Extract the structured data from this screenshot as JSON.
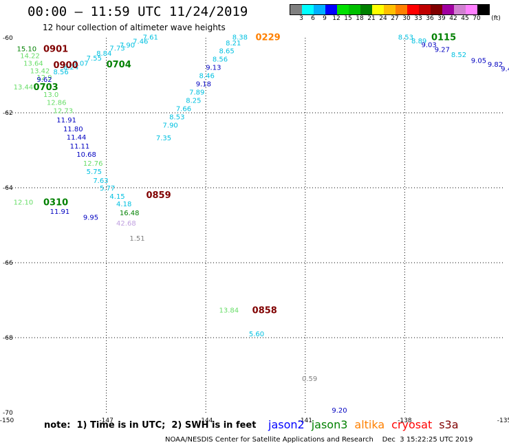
{
  "header": {
    "title": "00:00 – 11:59 UTC 11/24/2019",
    "subtitle": "12 hour collection of altimeter wave heights"
  },
  "color_scale": {
    "colors": [
      "#808080",
      "#00ffff",
      "#00b0ff",
      "#0000ff",
      "#00e000",
      "#00c000",
      "#008000",
      "#ffff00",
      "#ffc000",
      "#ff8000",
      "#ff0000",
      "#c00000",
      "#800000",
      "#a000a0",
      "#d080d0",
      "#ff80ff",
      "#000000"
    ],
    "labels": [
      "3",
      "6",
      "9",
      "12",
      "15",
      "18",
      "21",
      "24",
      "27",
      "30",
      "33",
      "36",
      "39",
      "42",
      "45",
      "70"
    ],
    "unit": "(ft)"
  },
  "chart_data": {
    "type": "scatter",
    "x_axis": {
      "ticks": [
        "-150",
        "-147",
        "-144",
        "-141",
        "-138",
        "-135"
      ],
      "range": [
        -150,
        -135
      ]
    },
    "y_axis": {
      "ticks": [
        "-60",
        "-62",
        "-64",
        "-66",
        "-68",
        "-70"
      ],
      "range": [
        -70,
        -60
      ]
    },
    "grid": true,
    "points": [
      {
        "x": -149.7,
        "y": -60.28,
        "label": "15.10",
        "color": "#008000"
      },
      {
        "x": -149.6,
        "y": -60.47,
        "label": "14.22",
        "color": "#66dd66"
      },
      {
        "x": -149.5,
        "y": -60.67,
        "label": "13.64",
        "color": "#66dd66"
      },
      {
        "x": -149.3,
        "y": -60.87,
        "label": "13.42",
        "color": "#66dd66"
      },
      {
        "x": -149.1,
        "y": -61.05,
        "label": "12.9",
        "color": "#66dd66"
      },
      {
        "x": -149.8,
        "y": -61.3,
        "label": "13.44",
        "color": "#66dd66"
      },
      {
        "x": -148.9,
        "y": -61.5,
        "label": "13.0",
        "color": "#66dd66"
      },
      {
        "x": -148.8,
        "y": -61.72,
        "label": "12.86",
        "color": "#66dd66"
      },
      {
        "x": -148.6,
        "y": -61.94,
        "label": "12.73",
        "color": "#66dd66"
      },
      {
        "x": -148.5,
        "y": -62.18,
        "label": "11.91",
        "color": "#0000c0"
      },
      {
        "x": -148.3,
        "y": -62.42,
        "label": "11.80",
        "color": "#0000c0"
      },
      {
        "x": -148.2,
        "y": -62.64,
        "label": "11.44",
        "color": "#0000c0"
      },
      {
        "x": -148.1,
        "y": -62.88,
        "label": "11.11",
        "color": "#0000c0"
      },
      {
        "x": -147.9,
        "y": -63.1,
        "label": "10.68",
        "color": "#0000c0"
      },
      {
        "x": -147.7,
        "y": -63.34,
        "label": "12.76",
        "color": "#66dd66"
      },
      {
        "x": -147.6,
        "y": -63.56,
        "label": "5.75",
        "color": "#00c0e0"
      },
      {
        "x": -147.4,
        "y": -63.8,
        "label": "7.63",
        "color": "#00c0e0"
      },
      {
        "x": -147.2,
        "y": -64.0,
        "label": "5.77",
        "color": "#00c0e0"
      },
      {
        "x": -146.9,
        "y": -64.22,
        "label": "4.15",
        "color": "#00c0e0"
      },
      {
        "x": -146.7,
        "y": -64.42,
        "label": "4.18",
        "color": "#00c0e0"
      },
      {
        "x": -146.6,
        "y": -64.66,
        "label": "16.48",
        "color": "#008000"
      },
      {
        "x": -146.7,
        "y": -64.94,
        "label": "42.68",
        "color": "#c0a0e0"
      },
      {
        "x": -146.3,
        "y": -65.34,
        "label": "1.51",
        "color": "#808080"
      },
      {
        "x": -149.8,
        "y": -64.38,
        "label": "12.10",
        "color": "#66dd66"
      },
      {
        "x": -148.7,
        "y": -64.62,
        "label": "11.91",
        "color": "#0000c0"
      },
      {
        "x": -147.7,
        "y": -64.78,
        "label": "9.95",
        "color": "#0000c0"
      },
      {
        "x": -149.1,
        "y": -61.1,
        "label": "9.62",
        "color": "#0000c0"
      },
      {
        "x": -148.6,
        "y": -60.9,
        "label": "8.56",
        "color": "#00c0e0"
      },
      {
        "x": -148.3,
        "y": -60.77,
        "label": "8.24",
        "color": "#00c0e0"
      },
      {
        "x": -148.0,
        "y": -60.67,
        "label": "7.07",
        "color": "#00c0e0"
      },
      {
        "x": -147.6,
        "y": -60.53,
        "label": "7.55",
        "color": "#00c0e0"
      },
      {
        "x": -147.3,
        "y": -60.4,
        "label": "8.84",
        "color": "#00c0e0"
      },
      {
        "x": -146.9,
        "y": -60.27,
        "label": "7.73",
        "color": "#00c0e0"
      },
      {
        "x": -146.6,
        "y": -60.18,
        "label": "7.90",
        "color": "#00c0e0"
      },
      {
        "x": -146.2,
        "y": -60.08,
        "label": "7.46",
        "color": "#00c0e0"
      },
      {
        "x": -145.9,
        "y": -59.97,
        "label": "7.61",
        "color": "#00c0e0"
      },
      {
        "x": -143.2,
        "y": -59.97,
        "label": "8.38",
        "color": "#00c0e0"
      },
      {
        "x": -143.4,
        "y": -60.13,
        "label": "8.21",
        "color": "#00c0e0"
      },
      {
        "x": -143.6,
        "y": -60.34,
        "label": "8.65",
        "color": "#00c0e0"
      },
      {
        "x": -143.8,
        "y": -60.56,
        "label": "8.56",
        "color": "#00c0e0"
      },
      {
        "x": -144.0,
        "y": -60.78,
        "label": "9.13",
        "color": "#0000c0"
      },
      {
        "x": -144.2,
        "y": -61.0,
        "label": "8.46",
        "color": "#00c0e0"
      },
      {
        "x": -144.3,
        "y": -61.22,
        "label": "9.18",
        "color": "#0000c0"
      },
      {
        "x": -144.5,
        "y": -61.44,
        "label": "7.89",
        "color": "#00c0e0"
      },
      {
        "x": -144.6,
        "y": -61.66,
        "label": "8.25",
        "color": "#00c0e0"
      },
      {
        "x": -144.9,
        "y": -61.88,
        "label": "7.66",
        "color": "#00c0e0"
      },
      {
        "x": -145.1,
        "y": -62.1,
        "label": "8.53",
        "color": "#00c0e0"
      },
      {
        "x": -145.3,
        "y": -62.32,
        "label": "7.90",
        "color": "#00c0e0"
      },
      {
        "x": -145.5,
        "y": -62.66,
        "label": "7.35",
        "color": "#00c0e0"
      },
      {
        "x": -138.2,
        "y": -59.97,
        "label": "8.53",
        "color": "#00c0e0"
      },
      {
        "x": -137.8,
        "y": -60.07,
        "label": "8.89",
        "color": "#00c0e0"
      },
      {
        "x": -137.5,
        "y": -60.17,
        "label": "9.03",
        "color": "#0000c0"
      },
      {
        "x": -137.1,
        "y": -60.3,
        "label": "9.27",
        "color": "#0000c0"
      },
      {
        "x": -136.6,
        "y": -60.44,
        "label": "8.52",
        "color": "#00c0e0"
      },
      {
        "x": -136.0,
        "y": -60.6,
        "label": "9.05",
        "color": "#0000c0"
      },
      {
        "x": -135.5,
        "y": -60.7,
        "label": "9.82",
        "color": "#0000c0"
      },
      {
        "x": -135.1,
        "y": -60.82,
        "label": "9.4",
        "color": "#0000c0"
      },
      {
        "x": -143.6,
        "y": -67.26,
        "label": "13.84",
        "color": "#66dd66"
      },
      {
        "x": -142.7,
        "y": -67.89,
        "label": "5.60",
        "color": "#00c0e0"
      },
      {
        "x": -141.1,
        "y": -69.08,
        "label": "0.59",
        "color": "#808080"
      },
      {
        "x": -140.2,
        "y": -69.93,
        "label": "9.20",
        "color": "#0000c0"
      }
    ],
    "time_labels": [
      {
        "x": -148.9,
        "y": -60.28,
        "label": "0901",
        "color": "#800000"
      },
      {
        "x": -148.6,
        "y": -60.72,
        "label": "0900",
        "color": "#800000"
      },
      {
        "x": -147.0,
        "y": -60.7,
        "label": "0704",
        "color": "#008000"
      },
      {
        "x": -149.2,
        "y": -61.3,
        "label": "0703",
        "color": "#008000"
      },
      {
        "x": -142.5,
        "y": -59.97,
        "label": "0229",
        "color": "#ff8000"
      },
      {
        "x": -137.2,
        "y": -59.97,
        "label": "0115",
        "color": "#008000"
      },
      {
        "x": -148.9,
        "y": -64.38,
        "label": "0310",
        "color": "#008000"
      },
      {
        "x": -145.8,
        "y": -64.18,
        "label": "0859",
        "color": "#800000"
      },
      {
        "x": -142.6,
        "y": -67.26,
        "label": "0858",
        "color": "#800000"
      }
    ]
  },
  "footer": {
    "note": "note:  1) Time is in UTC;  2) SWH is in feet",
    "satellites": [
      {
        "name": "jason2",
        "color": "#0000ff"
      },
      {
        "name": "jason3",
        "color": "#008000"
      },
      {
        "name": "altika",
        "color": "#ff8000"
      },
      {
        "name": "cryosat",
        "color": "#ff0000"
      },
      {
        "name": "s3a",
        "color": "#800000"
      }
    ],
    "credit": "NOAA/NESDIS Center for Satellite Applications and Research    Dec  3 15:22:25 UTC 2019"
  }
}
